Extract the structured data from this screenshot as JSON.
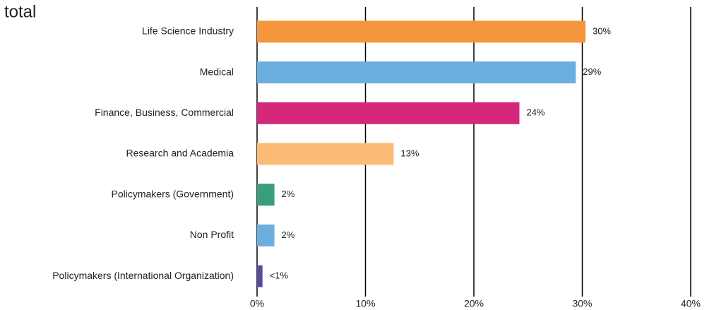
{
  "chart_data": {
    "type": "hbar",
    "title": "total",
    "categories": [
      "Life Science Industry",
      "Medical",
      "Finance, Business, Commercial",
      "Research and Academia",
      "Policymakers (Government)",
      "Non Profit",
      "Policymakers (International Organization)"
    ],
    "values": [
      30.3,
      29.4,
      24.2,
      12.6,
      1.6,
      1.6,
      0.5
    ],
    "value_labels": [
      "30%",
      "29%",
      "24%",
      "13%",
      "2%",
      "2%",
      "<1%"
    ],
    "colors": [
      "#f5963f",
      "#6aafe0",
      "#d6287a",
      "#fdbb78",
      "#3a9e7a",
      "#6aafe0",
      "#5a4a9e"
    ],
    "xlim": [
      0,
      40
    ],
    "xticks": [
      {
        "value": 0,
        "label": "0%"
      },
      {
        "value": 10,
        "label": "10%"
      },
      {
        "value": 20,
        "label": "20%"
      },
      {
        "value": 30,
        "label": "30%"
      },
      {
        "value": 40,
        "label": "40%"
      }
    ],
    "grid": true
  }
}
